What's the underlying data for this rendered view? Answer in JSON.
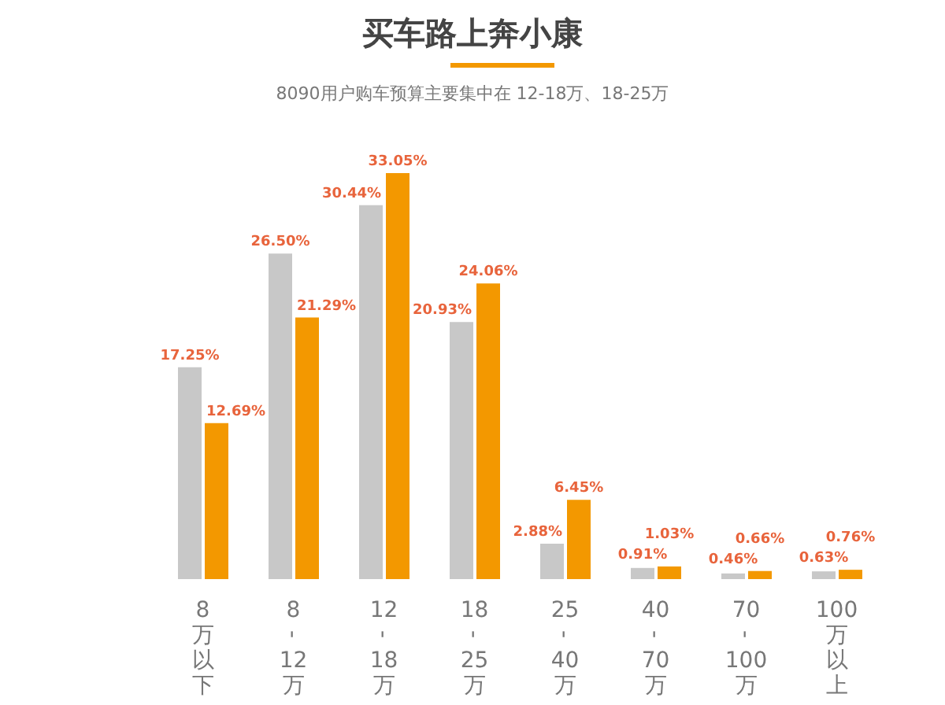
{
  "chart_data": {
    "type": "bar",
    "title": "买车路上奔小康",
    "subtitle": "8090用户购车预算主要集中在 12-18万、18-25万",
    "categories": [
      "8万以下",
      "8-12万",
      "12-18万",
      "18-25万",
      "25-40万",
      "40-70万",
      "70-100万",
      "100万以上"
    ],
    "series": [
      {
        "color": "#c8c8c8",
        "values": [
          17.25,
          26.5,
          30.44,
          20.93,
          2.88,
          0.91,
          0.46,
          0.63
        ],
        "value_labels": [
          "17.25%",
          "26.50%",
          "30.44%",
          "20.93%",
          "2.88%",
          "0.91%",
          "0.46%",
          "0.63%"
        ]
      },
      {
        "color": "#f39800",
        "values": [
          12.69,
          21.29,
          33.05,
          24.06,
          6.45,
          1.03,
          0.66,
          0.76
        ],
        "value_labels": [
          "12.69%",
          "21.29%",
          "33.05%",
          "24.06%",
          "6.45%",
          "1.03%",
          "0.66%",
          "0.76%"
        ]
      }
    ],
    "grid": false,
    "legend": false
  }
}
